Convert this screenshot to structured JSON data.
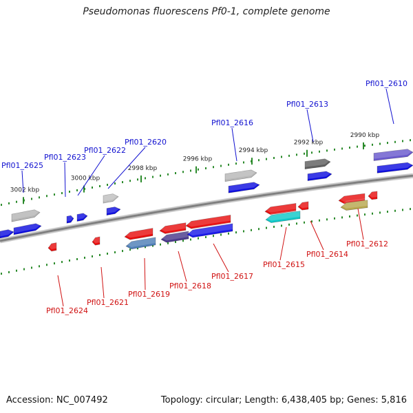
{
  "title": "Pseudomonas fluorescens Pf0-1, complete genome",
  "footer": {
    "accession": "Accession: NC_007492",
    "topology": "Topology: circular; Length: 6,438,405 bp; Genes: 5,816"
  },
  "colors": {
    "forward_label": "#1010d0",
    "reverse_label": "#d01010",
    "backbone": "#808080",
    "tick": "#2a8a2a"
  },
  "scale_labels": [
    "3002 kbp",
    "3000 kbp",
    "2998 kbp",
    "2996 kbp",
    "2994 kbp",
    "2992 kbp",
    "2990 kbp"
  ],
  "forward_genes": [
    {
      "id": "gene-pfl01-2625",
      "label": "Pfl01_2625",
      "color": "#1010e0"
    },
    {
      "id": "gene-pfl01-2623",
      "label": "Pfl01_2623",
      "color": "#1010e0"
    },
    {
      "id": "gene-pfl01-2622",
      "label": "Pfl01_2622",
      "color": "#1010e0"
    },
    {
      "id": "gene-pfl01-2620",
      "label": "Pfl01_2620",
      "color": "#1010e0"
    },
    {
      "id": "gene-pfl01-2616",
      "label": "Pfl01_2616",
      "color": "#1010e0"
    },
    {
      "id": "gene-pfl01-2613",
      "label": "Pfl01_2613",
      "color": "#1010e0"
    },
    {
      "id": "gene-pfl01-2610",
      "label": "Pfl01_2610",
      "color": "#1010e0"
    }
  ],
  "reverse_genes": [
    {
      "id": "gene-pfl01-2624",
      "label": "Pfl01_2624",
      "color": "#e81010"
    },
    {
      "id": "gene-pfl01-2621",
      "label": "Pfl01_2621",
      "color": "#e81010"
    },
    {
      "id": "gene-pfl01-2619",
      "label": "Pfl01_2619",
      "color": "#e81010"
    },
    {
      "id": "gene-pfl01-2618",
      "label": "Pfl01_2618",
      "color": "#e81010"
    },
    {
      "id": "gene-pfl01-2617",
      "label": "Pfl01_2617",
      "color": "#e81010"
    },
    {
      "id": "gene-pfl01-2615",
      "label": "Pfl01_2615",
      "color": "#e81010"
    },
    {
      "id": "gene-pfl01-2614",
      "label": "Pfl01_2614",
      "color": "#e81010"
    },
    {
      "id": "gene-pfl01-2612",
      "label": "Pfl01_2612",
      "color": "#e81010"
    }
  ]
}
